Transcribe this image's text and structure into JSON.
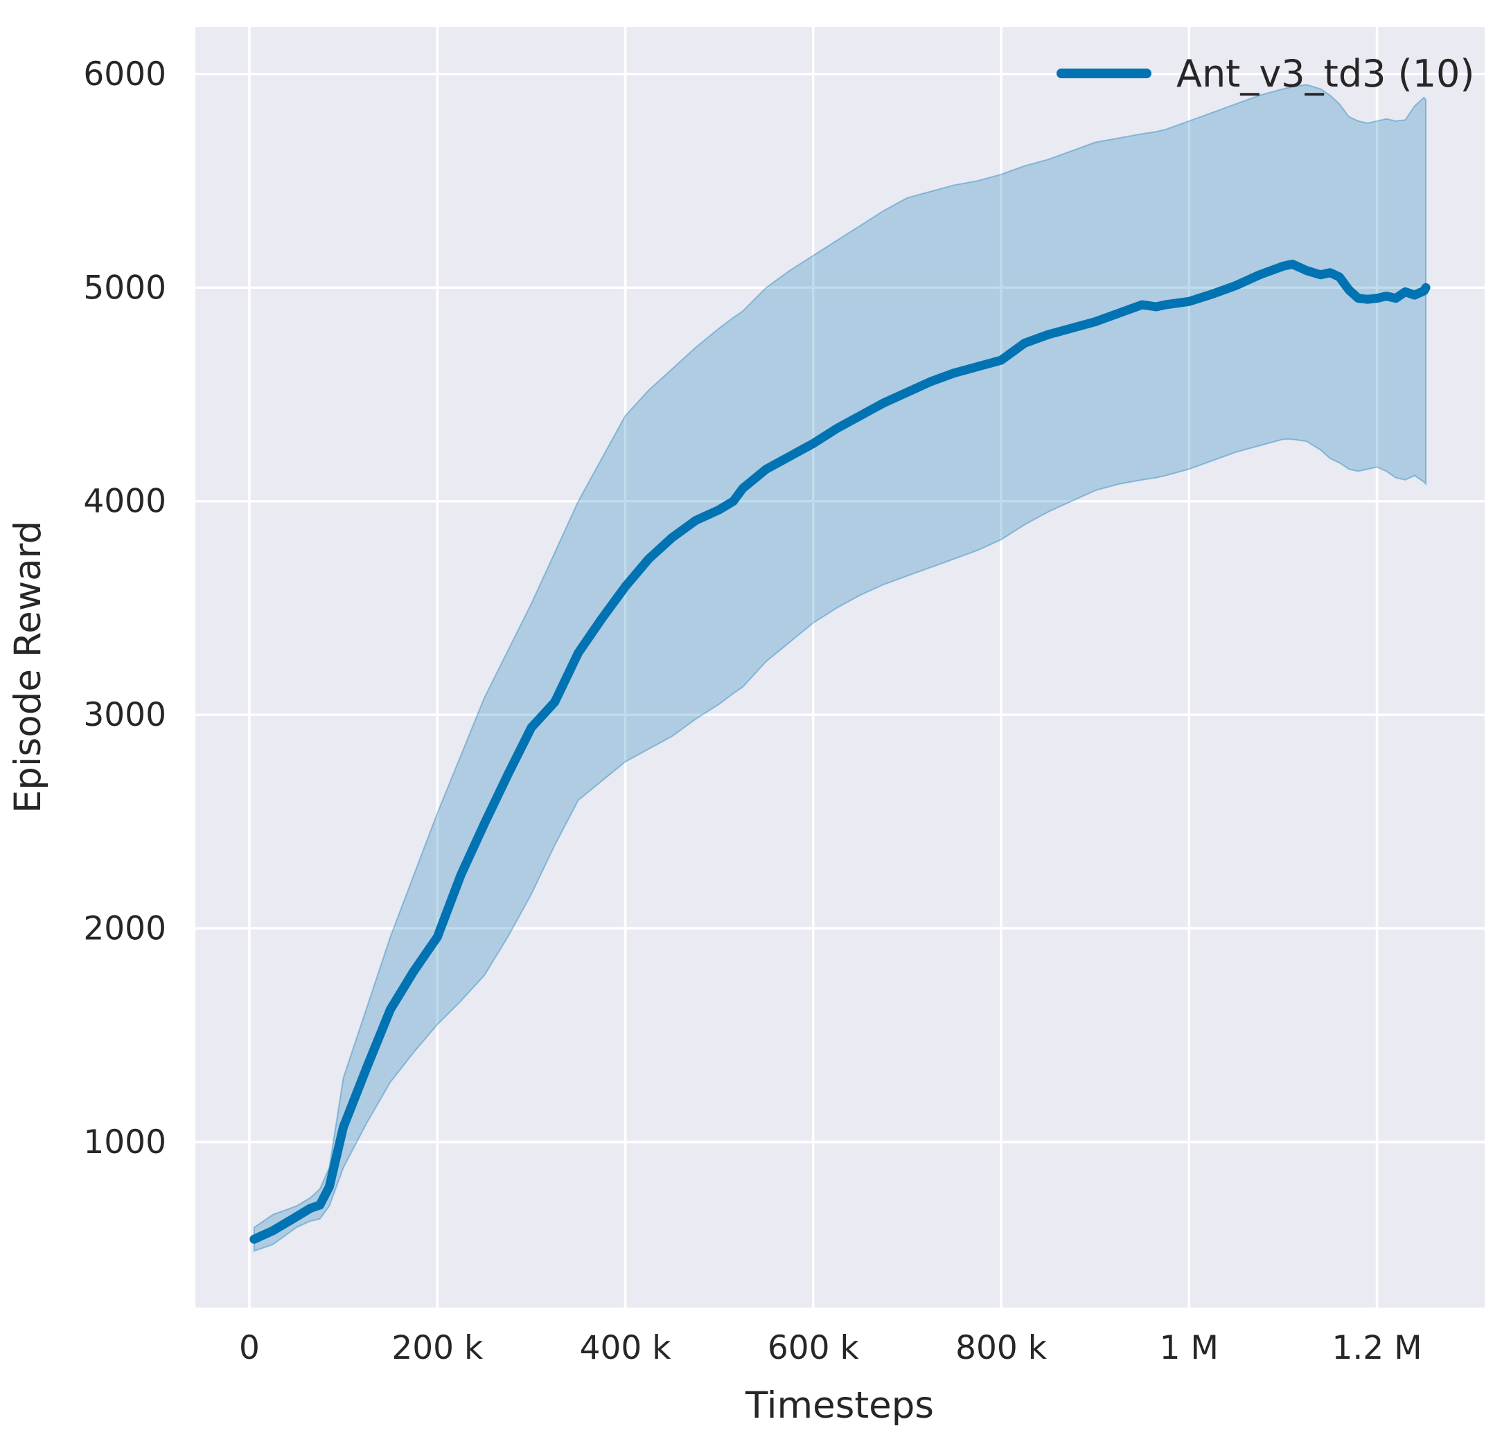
{
  "figure": {
    "background": "#ffffff",
    "plot_background": "#eaeaf2",
    "grid_color": "#ffffff",
    "text_color": "#262626"
  },
  "chart_data": {
    "type": "line",
    "title": "",
    "xlabel": "Timesteps",
    "ylabel": "Episode Reward",
    "grid": true,
    "legend_position": "upper right",
    "legend_frame": false,
    "xlim": [
      -57500,
      1314600
    ],
    "ylim": [
      225,
      6220
    ],
    "xticks": [
      {
        "value": 0,
        "label": "0"
      },
      {
        "value": 200000,
        "label": "200 k"
      },
      {
        "value": 400000,
        "label": "400 k"
      },
      {
        "value": 600000,
        "label": "600 k"
      },
      {
        "value": 800000,
        "label": "800 k"
      },
      {
        "value": 1000000,
        "label": "1 M"
      },
      {
        "value": 1200000,
        "label": "1.2 M"
      }
    ],
    "yticks": [
      {
        "value": 1000,
        "label": "1000"
      },
      {
        "value": 2000,
        "label": "2000"
      },
      {
        "value": 3000,
        "label": "3000"
      },
      {
        "value": 4000,
        "label": "4000"
      },
      {
        "value": 5000,
        "label": "5000"
      },
      {
        "value": 6000,
        "label": "6000"
      }
    ],
    "series": [
      {
        "name": "Ant_v3_td3",
        "legend_label": "Ant_v3_td3 (10)",
        "color": "#0173b2",
        "band_alpha": 0.25,
        "x": [
          5000,
          25000,
          50000,
          65000,
          75000,
          85000,
          100000,
          125000,
          150000,
          175000,
          200000,
          225000,
          250000,
          275000,
          300000,
          325000,
          350000,
          375000,
          400000,
          425000,
          450000,
          475000,
          500000,
          515000,
          525000,
          550000,
          575000,
          600000,
          625000,
          650000,
          675000,
          700000,
          725000,
          750000,
          775000,
          800000,
          825000,
          850000,
          875000,
          900000,
          925000,
          950000,
          965000,
          975000,
          1000000,
          1025000,
          1050000,
          1075000,
          1100000,
          1110000,
          1125000,
          1140000,
          1150000,
          1160000,
          1170000,
          1180000,
          1190000,
          1200000,
          1210000,
          1220000,
          1230000,
          1240000,
          1250000,
          1252000
        ],
        "mean": [
          545,
          585,
          650,
          690,
          705,
          790,
          1070,
          1350,
          1620,
          1800,
          1960,
          2250,
          2490,
          2720,
          2940,
          3060,
          3290,
          3450,
          3600,
          3730,
          3830,
          3910,
          3960,
          4000,
          4060,
          4150,
          4210,
          4270,
          4340,
          4400,
          4460,
          4510,
          4560,
          4600,
          4630,
          4660,
          4740,
          4780,
          4810,
          4840,
          4880,
          4920,
          4910,
          4920,
          4935,
          4970,
          5010,
          5060,
          5100,
          5110,
          5080,
          5060,
          5070,
          5050,
          4990,
          4950,
          4945,
          4950,
          4960,
          4950,
          4980,
          4965,
          4985,
          5000
        ],
        "lower": [
          490,
          520,
          600,
          630,
          640,
          700,
          880,
          1090,
          1280,
          1420,
          1550,
          1660,
          1780,
          1960,
          2160,
          2390,
          2600,
          2690,
          2780,
          2840,
          2900,
          2980,
          3050,
          3100,
          3130,
          3250,
          3340,
          3430,
          3500,
          3560,
          3610,
          3650,
          3690,
          3730,
          3770,
          3820,
          3890,
          3950,
          4000,
          4050,
          4080,
          4100,
          4110,
          4120,
          4150,
          4190,
          4230,
          4260,
          4290,
          4290,
          4280,
          4240,
          4200,
          4180,
          4150,
          4140,
          4150,
          4160,
          4140,
          4110,
          4100,
          4120,
          4090,
          4080
        ],
        "upper": [
          600,
          660,
          700,
          740,
          780,
          880,
          1300,
          1630,
          1960,
          2250,
          2540,
          2810,
          3080,
          3300,
          3520,
          3760,
          4000,
          4200,
          4400,
          4520,
          4620,
          4720,
          4810,
          4860,
          4890,
          5000,
          5080,
          5150,
          5220,
          5290,
          5360,
          5420,
          5450,
          5480,
          5500,
          5530,
          5570,
          5600,
          5640,
          5680,
          5700,
          5720,
          5730,
          5740,
          5780,
          5820,
          5860,
          5900,
          5930,
          5940,
          5950,
          5930,
          5900,
          5860,
          5800,
          5780,
          5770,
          5780,
          5790,
          5780,
          5785,
          5850,
          5890,
          5880
        ]
      }
    ]
  }
}
